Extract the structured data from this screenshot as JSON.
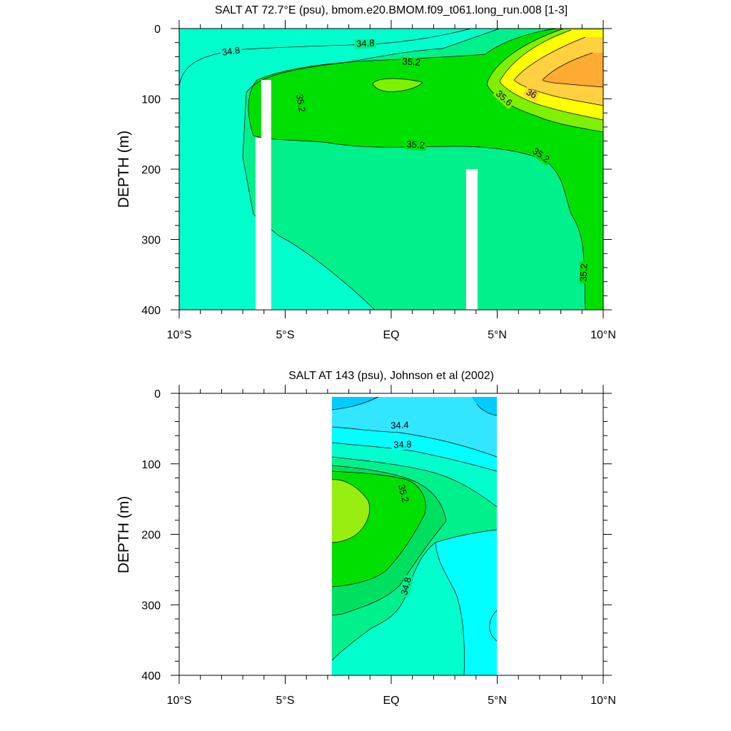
{
  "chart_data": [
    {
      "type": "contour",
      "title": "SALT AT  72.7°E (psu), bmom.e20.BMOM.f09_t061.long_run.008 [1-3]",
      "xlabel": "",
      "ylabel": "DEPTH (m)",
      "x_tick_labels": [
        "10°S",
        "5°S",
        "EQ",
        "5°N",
        "10°N"
      ],
      "x_tick_values": [
        -10,
        -5,
        0,
        5,
        10
      ],
      "y_tick_labels": [
        "0",
        "100",
        "200",
        "300",
        "400"
      ],
      "y_tick_values": [
        0,
        100,
        200,
        300,
        400
      ],
      "xlim": [
        -10,
        10
      ],
      "ylim": [
        400,
        0
      ],
      "contour_labels": [
        "34.8",
        "34.8",
        "35.2",
        "35.2",
        "35.2",
        "35.2",
        "35.2",
        "35.6",
        "36"
      ],
      "levels": [
        34.8,
        35.2,
        35.6,
        36.0
      ],
      "fill_colors": {
        "lt_34.8": "#00ffcc",
        "34.8_35.2": "#00f08c",
        "35.2_35.6": "#00e000",
        "35.6_35.8": "#7ff000",
        "35.8_36.0": "#ffff00",
        "gt_36.0": "#ffb030"
      },
      "missing_regions": [
        {
          "x": [
            -6.4,
            -5.7
          ],
          "depth": [
            75,
            400
          ]
        },
        {
          "x": [
            3.5,
            4.0
          ],
          "depth": [
            200,
            400
          ]
        }
      ]
    },
    {
      "type": "contour",
      "title": "SALT AT 143 (psu), Johnson et al (2002)",
      "xlabel": "",
      "ylabel": "DEPTH (m)",
      "x_tick_labels": [
        "10°S",
        "5°S",
        "EQ",
        "5°N",
        "10°N"
      ],
      "x_tick_values": [
        -10,
        -5,
        0,
        5,
        10
      ],
      "y_tick_labels": [
        "0",
        "100",
        "200",
        "300",
        "400"
      ],
      "y_tick_values": [
        0,
        100,
        200,
        300,
        400
      ],
      "xlim": [
        -10,
        10
      ],
      "ylim": [
        400,
        0
      ],
      "data_extent_x": [
        -2.8,
        5.0
      ],
      "contour_labels": [
        "34.4",
        "34.8",
        "35.2",
        "34.8"
      ],
      "levels": [
        34.2,
        34.4,
        34.6,
        34.8,
        35.0,
        35.2,
        35.4
      ],
      "fill_colors": {
        "lt_34.2": "#00ccff",
        "34.2_34.4": "#33e6ff",
        "34.4_34.6": "#00ffff",
        "34.6_34.8": "#00ffdd",
        "34.8_35.0": "#00f08c",
        "35.0_35.2": "#00e060",
        "35.2_35.4": "#00e000",
        "gt_35.4": "#99ee11"
      }
    }
  ]
}
